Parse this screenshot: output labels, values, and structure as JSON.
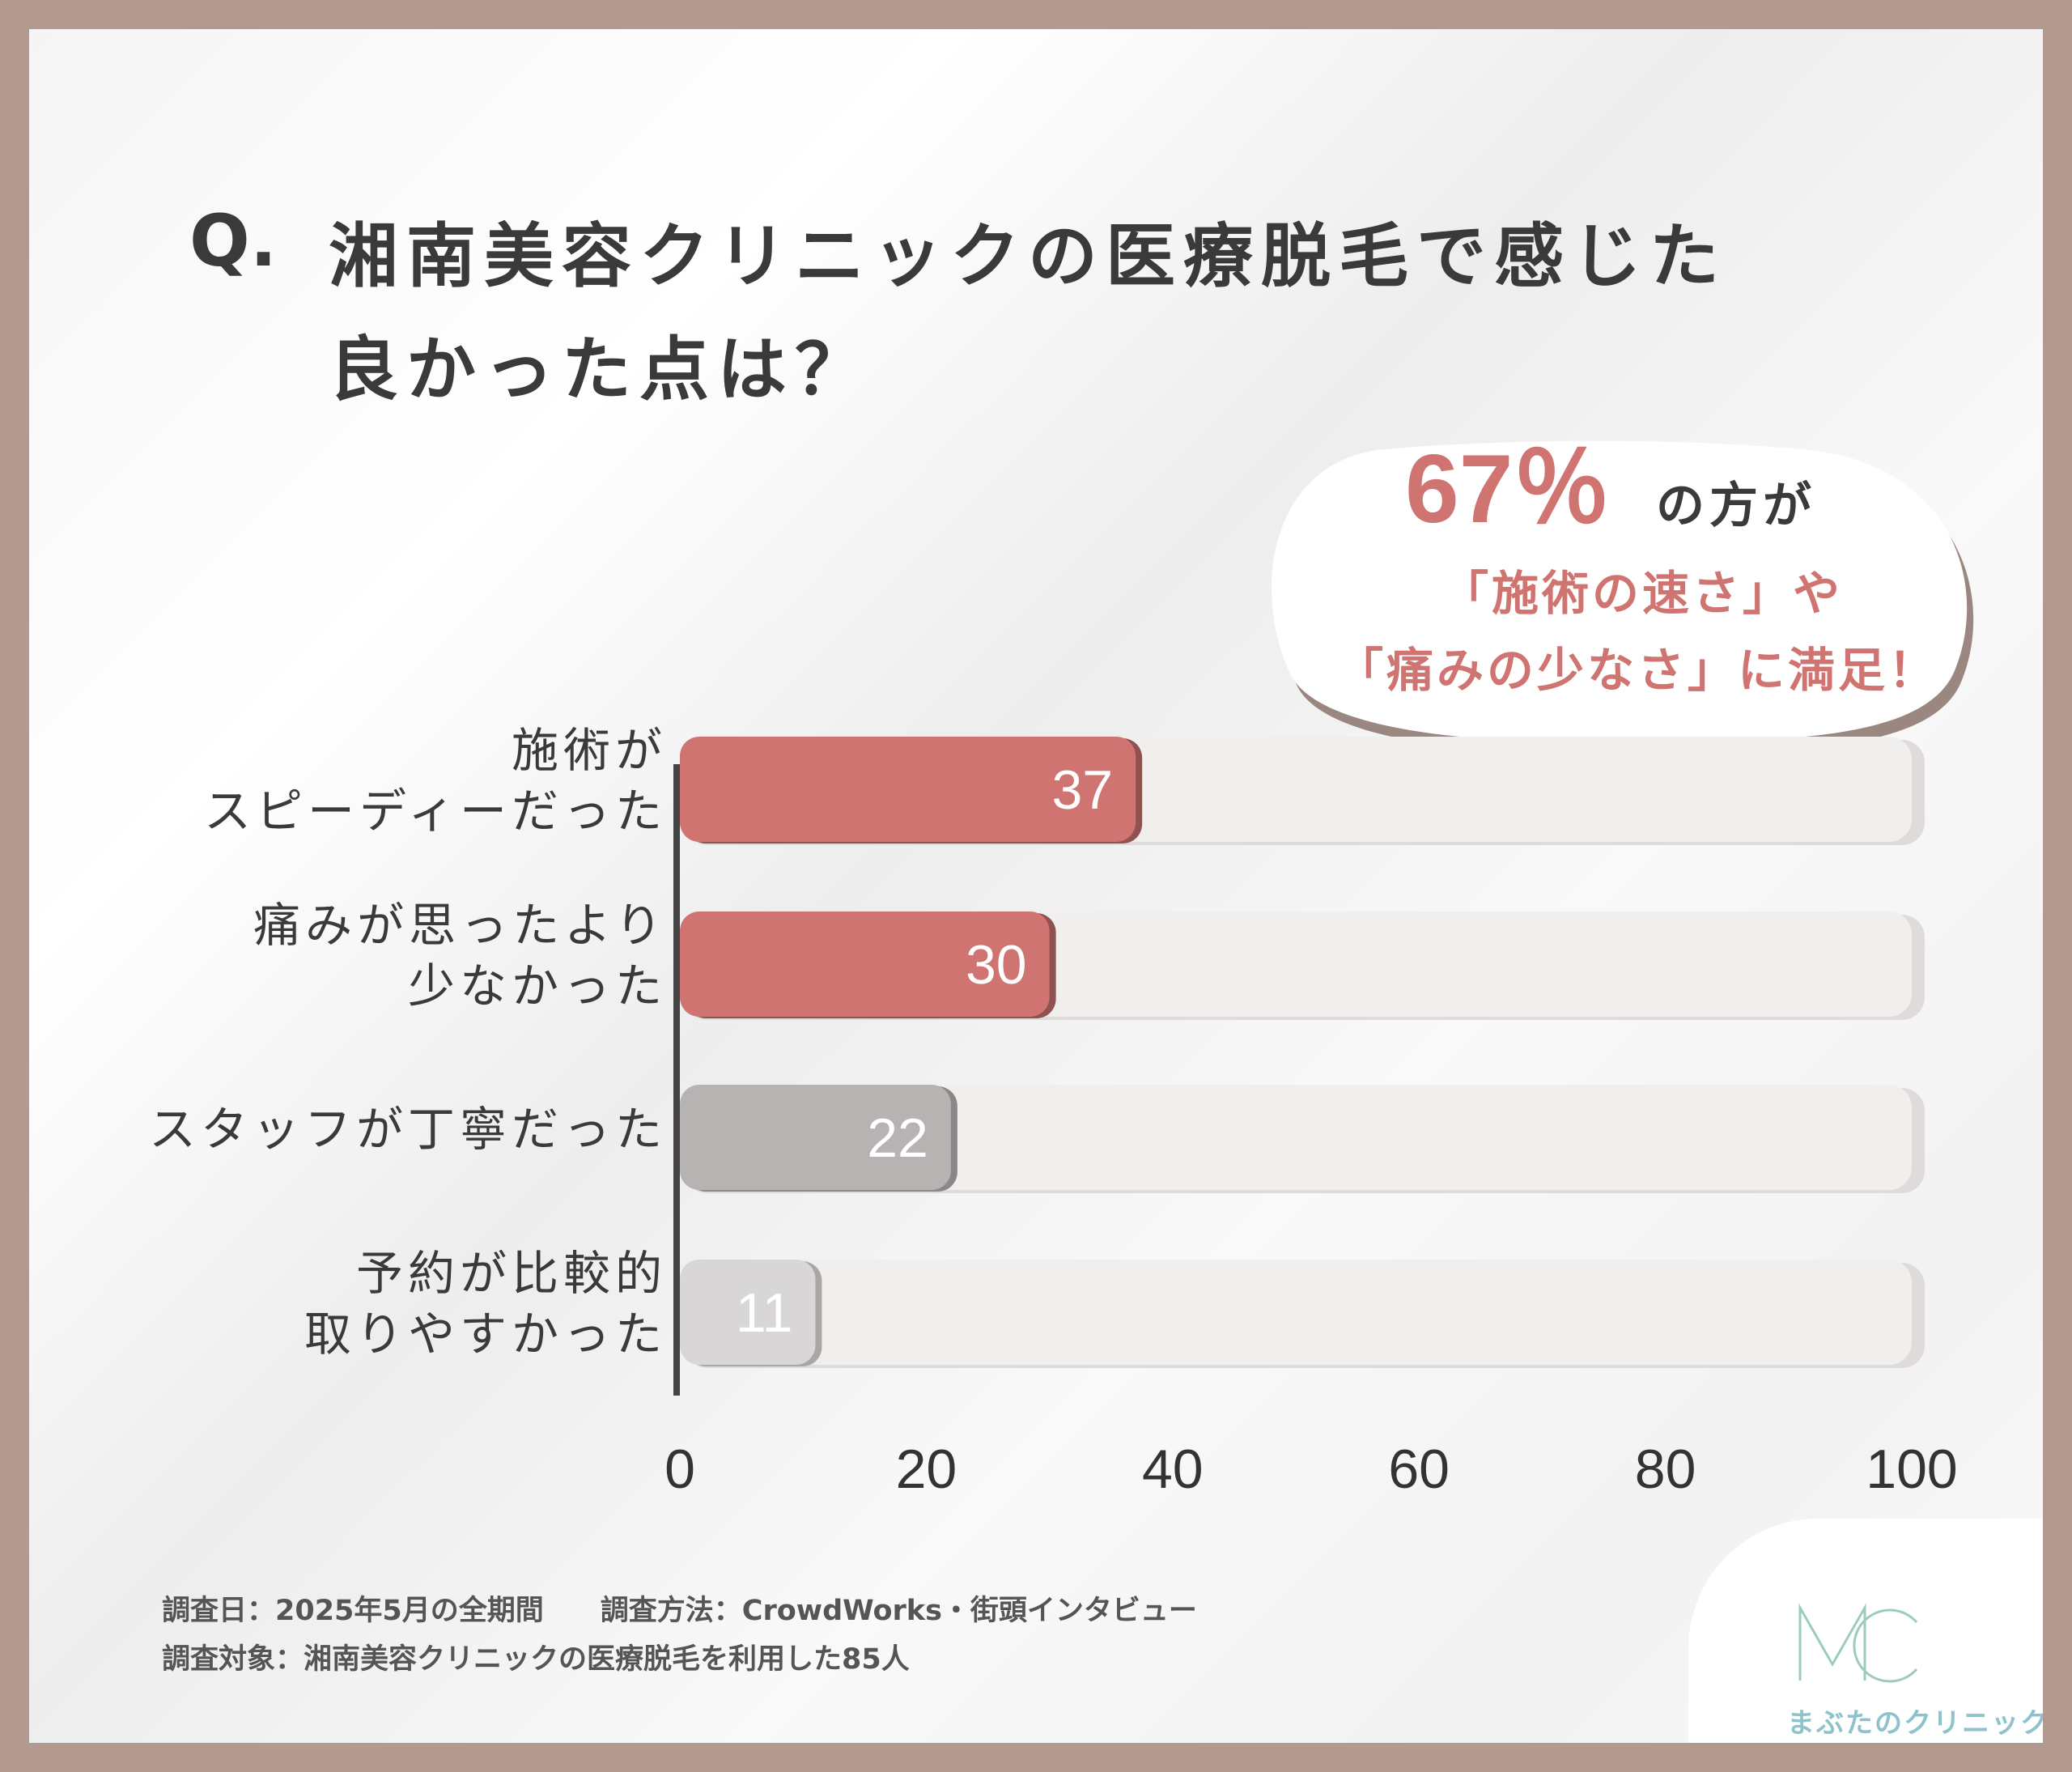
{
  "question": {
    "mark": "Q.",
    "line1": "湘南美容クリニックの医療脱毛で感じた",
    "line2": "良かった点は？"
  },
  "callout": {
    "big": "67％",
    "suffix": "の方が",
    "line2": "「施術の速さ」や",
    "line3": "「痛みの少なさ」に満足！"
  },
  "colors": {
    "highlight": "#cf7470",
    "gray": "#b7b3b3",
    "light_gray": "#d8d6d6",
    "track": "#f1efee"
  },
  "chart_data": {
    "type": "bar",
    "orientation": "horizontal",
    "categories": [
      [
        "施術が",
        "スピーディーだった"
      ],
      [
        "痛みが思ったより",
        "少なかった"
      ],
      [
        "スタッフが丁寧だった"
      ],
      [
        "予約が比較的",
        "取りやすかった"
      ]
    ],
    "values": [
      37,
      30,
      22,
      11
    ],
    "value_labels": [
      "37",
      "30",
      "22",
      "11"
    ],
    "xlim": [
      0,
      100
    ],
    "xticks": [
      "0",
      "20",
      "40",
      "60",
      "80",
      "100"
    ],
    "grid": false,
    "legend": "none"
  },
  "footer": {
    "line1": "調査日：2025年5月の全期間　　調査方法：CrowdWorks・街頭インタビュー",
    "line2": "調査対象：湘南美容クリニックの医療脱毛を利用した85人"
  },
  "logo": {
    "mark": "MC",
    "name": "まぶたのクリニック"
  }
}
